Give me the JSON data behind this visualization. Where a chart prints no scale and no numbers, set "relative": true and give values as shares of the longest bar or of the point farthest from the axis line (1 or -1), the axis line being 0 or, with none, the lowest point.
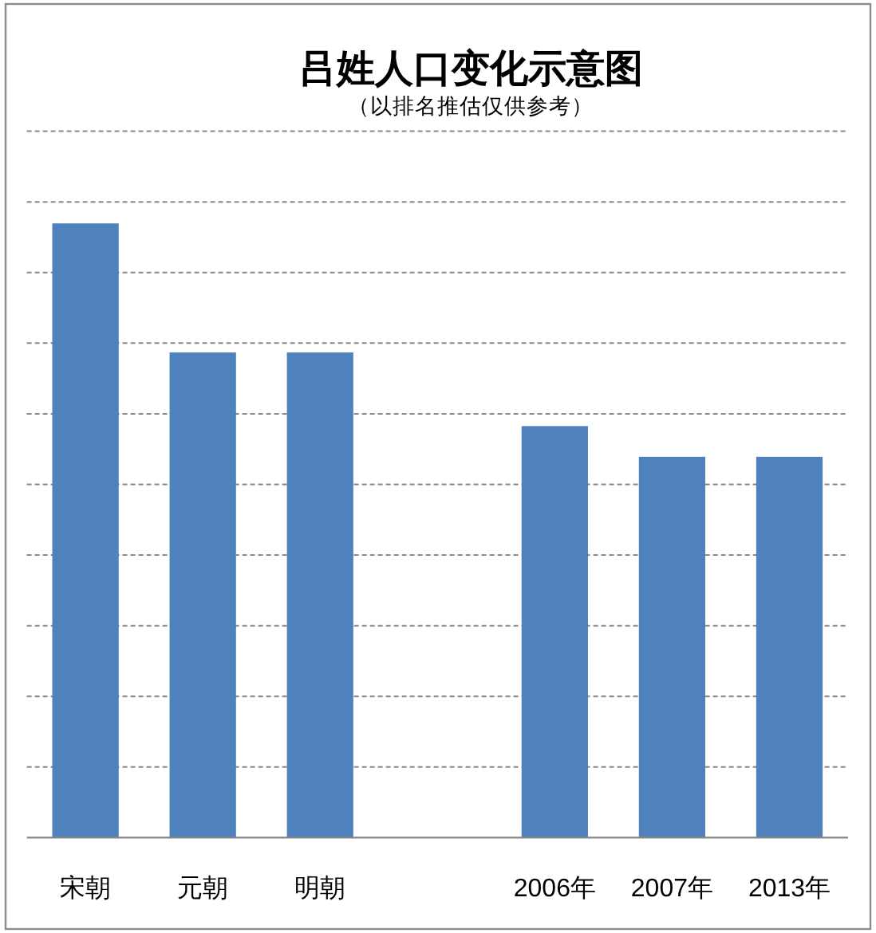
{
  "chart_data": {
    "type": "bar",
    "title": "吕姓人口变化示意图",
    "subtitle": "（以排名推估仅供参考）",
    "categories": [
      "宋朝",
      "元朝",
      "明朝",
      null,
      "2006年",
      "2007年",
      "2013年"
    ],
    "values": [
      1,
      0.79,
      0.79,
      null,
      0.67,
      0.62,
      0.62
    ],
    "color": "#4f81bd",
    "relative": true,
    "grid": "y"
  }
}
